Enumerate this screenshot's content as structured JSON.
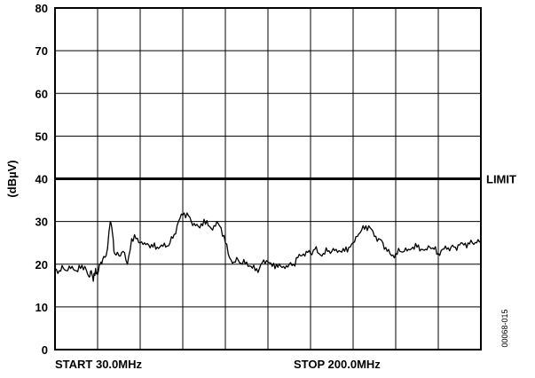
{
  "chart_data": {
    "type": "line",
    "title": "",
    "xlabel": "",
    "ylabel": "(dBµV)",
    "x_unit": "MHz",
    "xlim": [
      30.0,
      200.0
    ],
    "ylim": [
      0,
      80
    ],
    "yticks": [
      0,
      10,
      20,
      30,
      40,
      50,
      60,
      70,
      80
    ],
    "x_divisions": 10,
    "grid": true,
    "x_start_label": "START 30.0MHz",
    "x_stop_label": "STOP 200.0MHz",
    "limit": {
      "label": "LIMIT",
      "value": 40
    },
    "figure_code": "00068-015",
    "series": [
      {
        "x": [
          30.0,
          31.7,
          33.4,
          35.1,
          36.8,
          38.5,
          40.2,
          41.9,
          43.6,
          44.5,
          45.3,
          46.2,
          47.0,
          48.0,
          49.0,
          50.4,
          52.1,
          53.0,
          53.8,
          55.5,
          57.2,
          58.9,
          60.6,
          62.3,
          64.0,
          65.7,
          67.4,
          69.1,
          70.8,
          72.5,
          74.2,
          75.9,
          77.6,
          79.3,
          81.0,
          82.7,
          84.4,
          86.1,
          87.8,
          89.5,
          91.2,
          92.9,
          94.6,
          96.3,
          98.0,
          99.7,
          101.4,
          103.1,
          104.8,
          106.5,
          108.2,
          109.9,
          111.6,
          113.3,
          115.0,
          116.7,
          118.4,
          120.1,
          121.8,
          123.5,
          125.2,
          126.9,
          128.6,
          130.3,
          132.0,
          133.7,
          135.4,
          137.1,
          138.8,
          140.5,
          142.2,
          143.9,
          145.6,
          147.3,
          149.0,
          150.7,
          152.4,
          154.1,
          155.8,
          157.5,
          159.2,
          160.9,
          162.6,
          164.3,
          166.0,
          167.7,
          169.4,
          171.1,
          172.8,
          174.5,
          176.2,
          177.9,
          179.6,
          181.3,
          183.0,
          184.7,
          186.4,
          188.1,
          189.8,
          191.5,
          193.2,
          194.9,
          196.6,
          198.3,
          200.0
        ],
        "y": [
          19,
          18.5,
          19,
          18.5,
          19.5,
          18.5,
          19,
          19.5,
          17,
          18.5,
          16,
          19,
          17.5,
          20,
          21,
          22,
          30,
          27,
          22.5,
          22,
          23,
          20,
          26,
          26,
          25,
          25,
          24.5,
          24,
          24,
          24.5,
          24,
          25,
          27,
          30,
          31.5,
          32,
          30,
          29,
          28.5,
          30.5,
          29,
          28,
          30,
          28.5,
          25,
          21.5,
          20.5,
          21,
          20,
          20.5,
          19.5,
          18.5,
          19,
          21,
          20.5,
          19.5,
          20,
          19.5,
          19,
          20,
          20,
          21.5,
          22,
          23,
          22.5,
          23.5,
          22.5,
          22.5,
          23,
          23,
          23.5,
          23,
          23,
          24,
          25,
          26.5,
          28,
          29,
          28.5,
          26.5,
          26,
          25,
          23,
          22,
          22.5,
          23,
          23,
          23.5,
          24,
          24,
          23.5,
          23.5,
          24,
          23.5,
          22.5,
          23.5,
          23.5,
          24,
          24,
          24.5,
          24.5,
          25,
          25,
          25,
          25.5
        ]
      }
    ]
  }
}
